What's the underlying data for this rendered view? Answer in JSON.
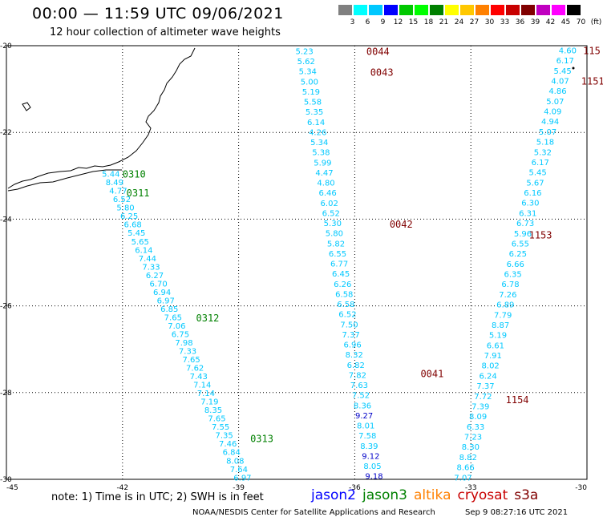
{
  "header": {
    "title": "00:00 — 11:59 UTC 09/06/2021",
    "subtitle": "12 hour collection of altimeter wave heights"
  },
  "color_scale": {
    "labels": [
      "3",
      "6",
      "9",
      "12",
      "15",
      "18",
      "21",
      "24",
      "27",
      "30",
      "33",
      "36",
      "39",
      "42",
      "45",
      "70",
      "(ft)"
    ],
    "colors": [
      "#808080",
      "#00ffff",
      "#00c8ff",
      "#0000ff",
      "#00c800",
      "#00ff00",
      "#008000",
      "#ffff00",
      "#ffc800",
      "#ff8000",
      "#ff0000",
      "#c80000",
      "#800000",
      "#c000c0",
      "#ff00ff",
      "#000000"
    ]
  },
  "axes": {
    "x_ticks": [
      "-45",
      "-42",
      "-39",
      "-36",
      "-33",
      "-30"
    ],
    "y_ticks": [
      "-20",
      "-22",
      "-24",
      "-26",
      "-28",
      "-30"
    ],
    "lon_range": [
      -45,
      -30
    ],
    "lat_range": [
      -30,
      -20
    ]
  },
  "passes": [
    {
      "label": "0310",
      "color": "#008000",
      "lon": -42,
      "lat": -22.95
    },
    {
      "label": "0311",
      "color": "#008000",
      "lon": -41.9,
      "lat": -23.38
    },
    {
      "label": "0312",
      "color": "#008000",
      "lon": -40.1,
      "lat": -26.27
    },
    {
      "label": "0313",
      "color": "#008000",
      "lon": -38.7,
      "lat": -29.05
    },
    {
      "label": "0044",
      "color": "#800000",
      "lon": -35.7,
      "lat": -20.12
    },
    {
      "label": "0043",
      "color": "#800000",
      "lon": -35.6,
      "lat": -20.6
    },
    {
      "label": "0042",
      "color": "#800000",
      "lon": -35.1,
      "lat": -24.1
    },
    {
      "label": "0041",
      "color": "#800000",
      "lon": -34.3,
      "lat": -27.55
    },
    {
      "label": "1153",
      "color": "#800000",
      "lon": -31.5,
      "lat": -24.35
    },
    {
      "label": "1154",
      "color": "#800000",
      "lon": -32.1,
      "lat": -28.15
    },
    {
      "label": "115",
      "color": "#800000",
      "lon": -30.1,
      "lat": -20.1
    },
    {
      "label": "1151",
      "color": "#800000",
      "lon": -30.15,
      "lat": -20.8
    }
  ],
  "tracks": [
    {
      "name": "jason3-track-west",
      "color": "#00c8ff",
      "start": [
        -42.3,
        -22.95
      ],
      "end": [
        -38.9,
        -29.95
      ],
      "values": [
        "5.44",
        "8.49",
        "4.77",
        "6.52",
        "5.80",
        "6.25",
        "6.68",
        "5.45",
        "5.65",
        "6.14",
        "7.44",
        "7.33",
        "6.27",
        "6.70",
        "6.94",
        "6.97",
        "6.85",
        "7.65",
        "7.06",
        "6.75",
        "7.98",
        "7.33",
        "7.65",
        "7.62",
        "7.43",
        "7.14",
        "7.14",
        "7.19",
        "8.35",
        "7.65",
        "7.55",
        "7.35",
        "7.46",
        "6.84",
        "8.08",
        "7.64",
        "6.97"
      ]
    },
    {
      "name": "cryosat-track-mid",
      "color": "#00c8ff",
      "start": [
        -37.3,
        -20.12
      ],
      "end": [
        -35.5,
        -29.92
      ],
      "values": [
        "5.23",
        "5.62",
        "5.34",
        "5.00",
        "5.19",
        "5.58",
        "5.35",
        "6.14",
        "4.26",
        "5.34",
        "5.38",
        "5.99",
        "4.47",
        "4.80",
        "6.46",
        "6.02",
        "6.52",
        "5.30",
        "5.80",
        "5.82",
        "6.55",
        "6.77",
        "6.45",
        "6.26",
        "6.58",
        "6.58",
        "6.52",
        "7.50",
        "7.37",
        "6.96",
        "8.32",
        "6.82",
        "7.82",
        "7.63",
        "7.52",
        "8.36",
        "9.27",
        "8.01",
        "7.58",
        "8.39",
        "9.12",
        "8.05",
        "9.18"
      ],
      "dark": {
        "36": "9.27",
        "40": "9.12",
        "42": "9.18"
      }
    },
    {
      "name": "cryosat-track-east",
      "color": "#00c8ff",
      "start": [
        -30.5,
        -20.1
      ],
      "end": [
        -33.2,
        -29.95
      ],
      "values": [
        "4.60",
        "6.17",
        "5.45",
        "4.07",
        "4.86",
        "5.07",
        "4.09",
        "4.94",
        "5.07",
        "5.18",
        "5.32",
        "6.17",
        "5.45",
        "5.67",
        "6.16",
        "6.30",
        "6.31",
        "6.73",
        "5.96",
        "6.55",
        "6.25",
        "6.66",
        "6.35",
        "6.78",
        "7.26",
        "6.89",
        "7.79",
        "8.87",
        "5.19",
        "6.61",
        "7.91",
        "8.02",
        "6.24",
        "7.37",
        "7.72",
        "7.39",
        "8.09",
        "6.33",
        "7.23",
        "8.30",
        "8.82",
        "8.66",
        "7.07"
      ]
    }
  ],
  "footer": {
    "note": "note: 1) Time is in UTC; 2) SWH is in feet",
    "satellites": [
      {
        "name": "jason2",
        "color": "#0000ff"
      },
      {
        "name": "jason3",
        "color": "#008000"
      },
      {
        "name": "altika",
        "color": "#ff8000"
      },
      {
        "name": "cryosat",
        "color": "#c80000"
      },
      {
        "name": "s3a",
        "color": "#800000"
      }
    ],
    "credit": "NOAA/NESDIS Center for Satellite Applications and Research",
    "timestamp": "Sep  9 08:27:16 UTC 2021"
  }
}
